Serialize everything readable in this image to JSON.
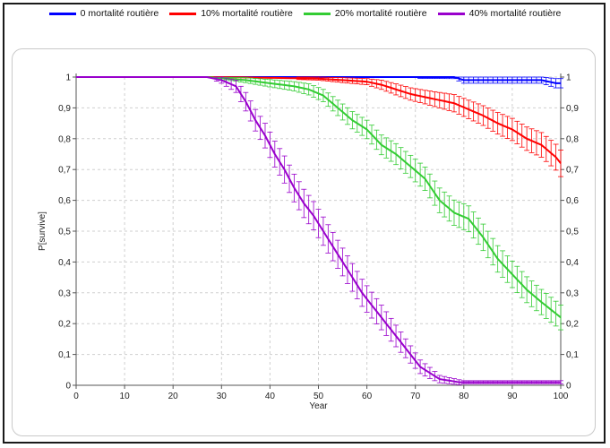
{
  "chart_data": {
    "type": "line",
    "title": "",
    "xlabel": "Year",
    "ylabel": "P[survive]",
    "xlim": [
      0,
      100
    ],
    "ylim": [
      0,
      1
    ],
    "xticks": [
      "0",
      "10",
      "20",
      "30",
      "40",
      "50",
      "60",
      "70",
      "80",
      "90",
      "100"
    ],
    "yticks": [
      "0",
      "0,1",
      "0,2",
      "0,3",
      "0,4",
      "0,5",
      "0,6",
      "0,7",
      "0,8",
      "0,9",
      "1"
    ],
    "grid": true,
    "legend_position": "top",
    "secondary_y_axis": true,
    "series": [
      {
        "name": "0 mortalité routière",
        "color": "#0000ff",
        "x": [
          0,
          40,
          78,
          80,
          96,
          99,
          100
        ],
        "y": [
          1,
          1,
          1,
          0.99,
          0.99,
          0.98,
          0.98
        ],
        "err": [
          0,
          0,
          0.005,
          0.01,
          0.01,
          0.015,
          0.015
        ]
      },
      {
        "name": "10% mortalité routière",
        "color": "#ff0000",
        "x": [
          0,
          30,
          50,
          55,
          60,
          63,
          66,
          69,
          72,
          75,
          78,
          81,
          84,
          87,
          90,
          93,
          96,
          99,
          100
        ],
        "y": [
          1,
          1,
          0.995,
          0.99,
          0.985,
          0.975,
          0.96,
          0.945,
          0.935,
          0.925,
          0.915,
          0.895,
          0.875,
          0.85,
          0.83,
          0.8,
          0.78,
          0.74,
          0.72
        ],
        "err": [
          0,
          0,
          0.005,
          0.008,
          0.01,
          0.015,
          0.018,
          0.02,
          0.022,
          0.025,
          0.028,
          0.03,
          0.032,
          0.035,
          0.036,
          0.038,
          0.04,
          0.042,
          0.043
        ]
      },
      {
        "name": "20% mortalité routière",
        "color": "#33cc33",
        "x": [
          0,
          27,
          35,
          40,
          45,
          48,
          51,
          54,
          57,
          60,
          63,
          66,
          69,
          72,
          75,
          78,
          81,
          84,
          87,
          90,
          93,
          96,
          100
        ],
        "y": [
          1,
          1,
          0.99,
          0.98,
          0.97,
          0.96,
          0.94,
          0.9,
          0.86,
          0.83,
          0.78,
          0.75,
          0.71,
          0.67,
          0.6,
          0.56,
          0.54,
          0.48,
          0.41,
          0.36,
          0.31,
          0.27,
          0.22
        ],
        "err": [
          0,
          0,
          0.008,
          0.012,
          0.015,
          0.018,
          0.02,
          0.025,
          0.028,
          0.03,
          0.032,
          0.034,
          0.036,
          0.038,
          0.04,
          0.041,
          0.042,
          0.043,
          0.043,
          0.043,
          0.042,
          0.041,
          0.04
        ]
      },
      {
        "name": "40% mortalité routière",
        "color": "#9900cc",
        "x": [
          0,
          27,
          30,
          33,
          35,
          37,
          39,
          41,
          43,
          45,
          47,
          49,
          51,
          53,
          55,
          57,
          59,
          61,
          63,
          65,
          67,
          69,
          71,
          73,
          75,
          77,
          79,
          80,
          85,
          100
        ],
        "y": [
          1,
          1,
          0.99,
          0.97,
          0.92,
          0.86,
          0.81,
          0.75,
          0.7,
          0.64,
          0.59,
          0.55,
          0.5,
          0.45,
          0.4,
          0.35,
          0.3,
          0.26,
          0.22,
          0.18,
          0.14,
          0.1,
          0.06,
          0.04,
          0.02,
          0.015,
          0.01,
          0.01,
          0.01,
          0.01
        ],
        "err": [
          0,
          0,
          0.01,
          0.02,
          0.03,
          0.035,
          0.04,
          0.042,
          0.044,
          0.045,
          0.046,
          0.046,
          0.046,
          0.046,
          0.045,
          0.045,
          0.044,
          0.042,
          0.04,
          0.037,
          0.033,
          0.028,
          0.022,
          0.018,
          0.012,
          0.01,
          0.008,
          0.005,
          0.005,
          0.005
        ]
      }
    ]
  }
}
